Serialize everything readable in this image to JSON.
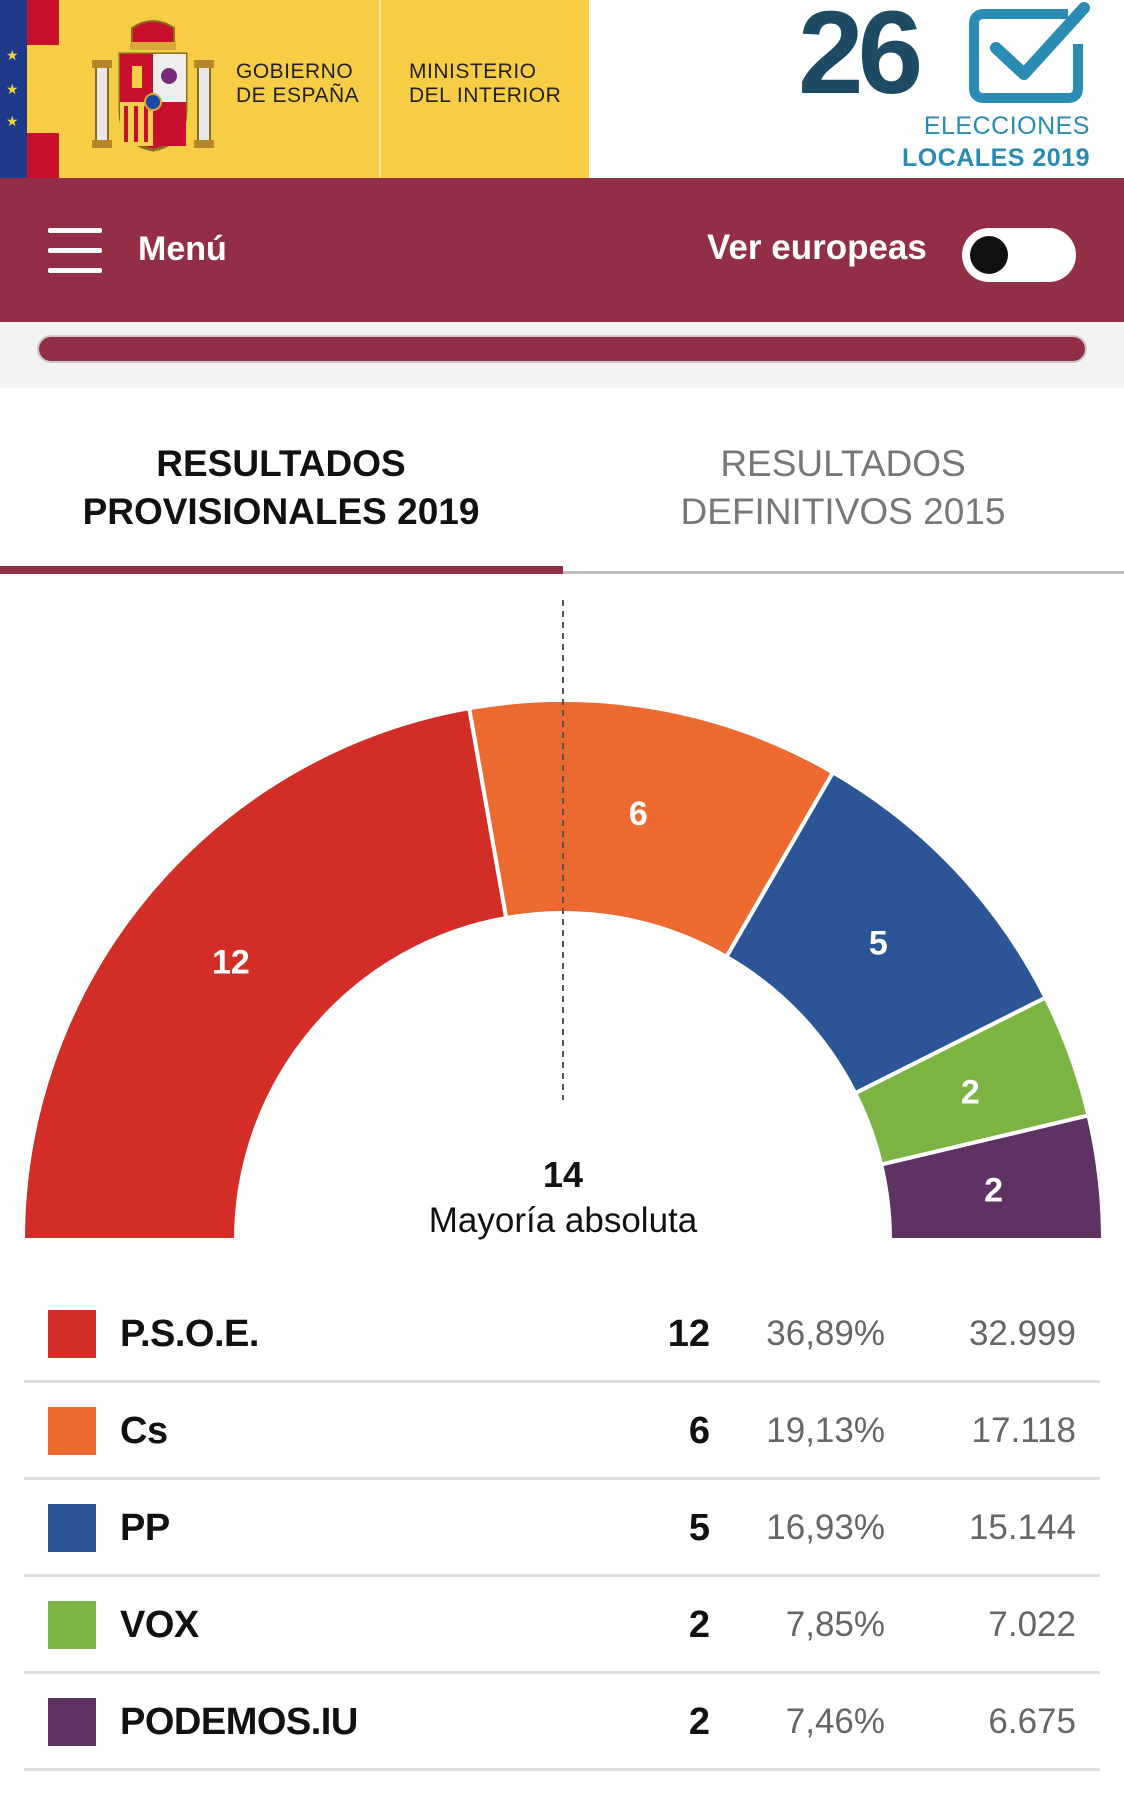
{
  "header": {
    "gov_line1": "GOBIERNO",
    "gov_line2": "DE ESPAÑA",
    "min_line1": "MINISTERIO",
    "min_line2": "DEL INTERIOR",
    "elections_number": "26",
    "elections_line1": "ELECCIONES",
    "elections_line2": "LOCALES 2019",
    "colors": {
      "yellow": "#f6cd45",
      "red": "#c8102e",
      "eu_blue": "#1f3a8a",
      "elections_text": "#1e4b64",
      "elections_accent": "#2a8bb3"
    }
  },
  "navbar": {
    "menu_label": "Menú",
    "toggle_label": "Ver europeas",
    "toggle_on": false,
    "color": "#922f46"
  },
  "progress": {
    "percent": 100
  },
  "tabs": [
    {
      "line1": "RESULTADOS",
      "line2": "PROVISIONALES 2019",
      "active": true
    },
    {
      "line1": "RESULTADOS",
      "line2": "DEFINITIVOS 2015",
      "active": false
    }
  ],
  "chart_data": {
    "type": "pie",
    "style": "semicircle-parliament",
    "total_seats": 27,
    "majority": {
      "value": "14",
      "label": "Mayoría absoluta"
    },
    "slices": [
      {
        "name": "P.S.O.E.",
        "seats": 12,
        "color": "#d22e27"
      },
      {
        "name": "Cs",
        "seats": 6,
        "color": "#ec6930"
      },
      {
        "name": "PP",
        "seats": 5,
        "color": "#2b5597"
      },
      {
        "name": "VOX",
        "seats": 2,
        "color": "#7cb342"
      },
      {
        "name": "PODEMOS.IU",
        "seats": 2,
        "color": "#5e3263"
      }
    ]
  },
  "results": [
    {
      "party": "P.S.O.E.",
      "seats": "12",
      "pct": "36,89%",
      "votes": "32.999",
      "color": "#d22e27"
    },
    {
      "party": "Cs",
      "seats": "6",
      "pct": "19,13%",
      "votes": "17.118",
      "color": "#ec6930"
    },
    {
      "party": "PP",
      "seats": "5",
      "pct": "16,93%",
      "votes": "15.144",
      "color": "#2b5597"
    },
    {
      "party": "VOX",
      "seats": "2",
      "pct": "7,85%",
      "votes": "7.022",
      "color": "#7cb342"
    },
    {
      "party": "PODEMOS.IU",
      "seats": "2",
      "pct": "7,46%",
      "votes": "6.675",
      "color": "#5e3263"
    }
  ]
}
